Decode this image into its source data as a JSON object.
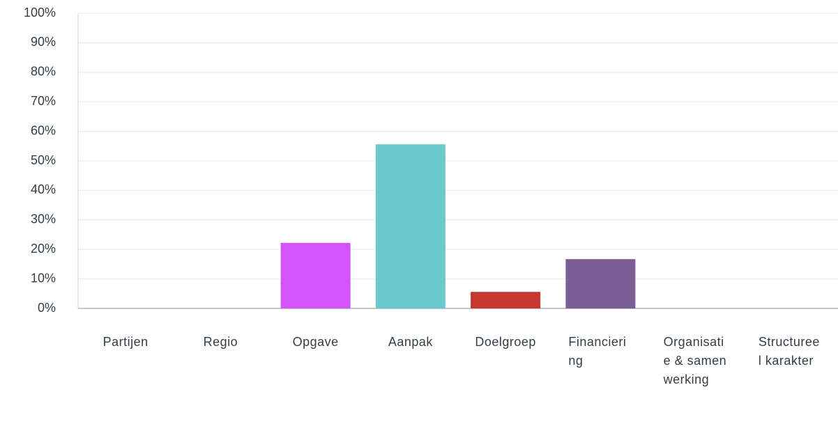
{
  "chart_data": {
    "type": "bar",
    "categories": [
      "Partijen",
      "Regio",
      "Opgave",
      "Aanpak",
      "Doelgroep",
      "Financiering",
      "Organisatie & samenwerking",
      "Structureel karakter"
    ],
    "values": [
      0,
      0,
      22.2,
      55.6,
      5.6,
      16.7,
      0,
      0
    ],
    "colors": [
      "#00bf6f",
      "#507cb6",
      "#d355fa",
      "#6bc8cd",
      "#c6372f",
      "#7b5e93",
      "#f9be00",
      "#f05b24"
    ],
    "ylim": [
      0,
      100
    ],
    "yticks": [
      {
        "value": 0,
        "label": "0%"
      },
      {
        "value": 10,
        "label": "10%"
      },
      {
        "value": 20,
        "label": "20%"
      },
      {
        "value": 30,
        "label": "30%"
      },
      {
        "value": 40,
        "label": "40%"
      },
      {
        "value": 50,
        "label": "50%"
      },
      {
        "value": 60,
        "label": "60%"
      },
      {
        "value": 70,
        "label": "70%"
      },
      {
        "value": 80,
        "label": "80%"
      },
      {
        "value": 90,
        "label": "90%"
      },
      {
        "value": 100,
        "label": "100%"
      }
    ],
    "grid": true
  }
}
